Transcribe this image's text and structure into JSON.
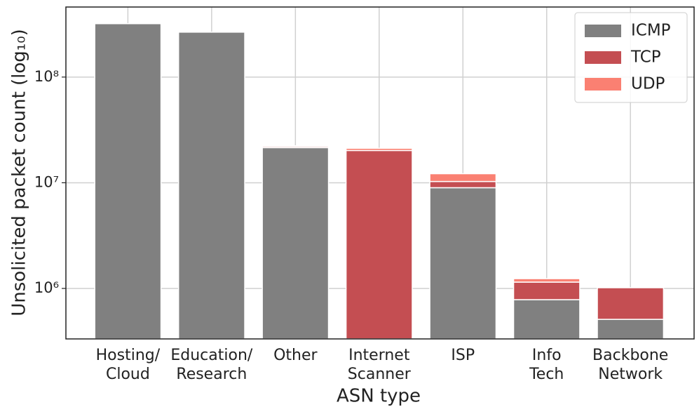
{
  "chart_data": {
    "type": "bar",
    "stacked": true,
    "log_scale": true,
    "grid": true,
    "legend": "upper right",
    "xlabel": "ASN type",
    "ylabel": "Unsolicited packet count (log₁₀)",
    "categories": [
      "Hosting/\nCloud",
      "Education/\nResearch",
      "Other",
      "Internet\nScanner",
      "ISP",
      "Info\nTech",
      "Backbone\nNetwork"
    ],
    "series": [
      {
        "name": "ICMP",
        "color": "#808080",
        "values": [
          320000000,
          266000000,
          21500000,
          0,
          8980000,
          783000,
          510000
        ]
      },
      {
        "name": "TCP",
        "color": "#c44e52",
        "values": [
          0,
          0,
          600000,
          20200000,
          1300000,
          365000,
          506000
        ]
      },
      {
        "name": "UDP",
        "color": "#fa8072",
        "values": [
          0,
          0,
          300000,
          1000000,
          1900000,
          90000,
          0
        ]
      }
    ],
    "ylim": [
      333000,
      460000000
    ],
    "yticks": [
      {
        "value": 1000000,
        "label": "10⁶"
      },
      {
        "value": 10000000,
        "label": "10⁷"
      },
      {
        "value": 100000000,
        "label": "10⁸"
      }
    ]
  }
}
